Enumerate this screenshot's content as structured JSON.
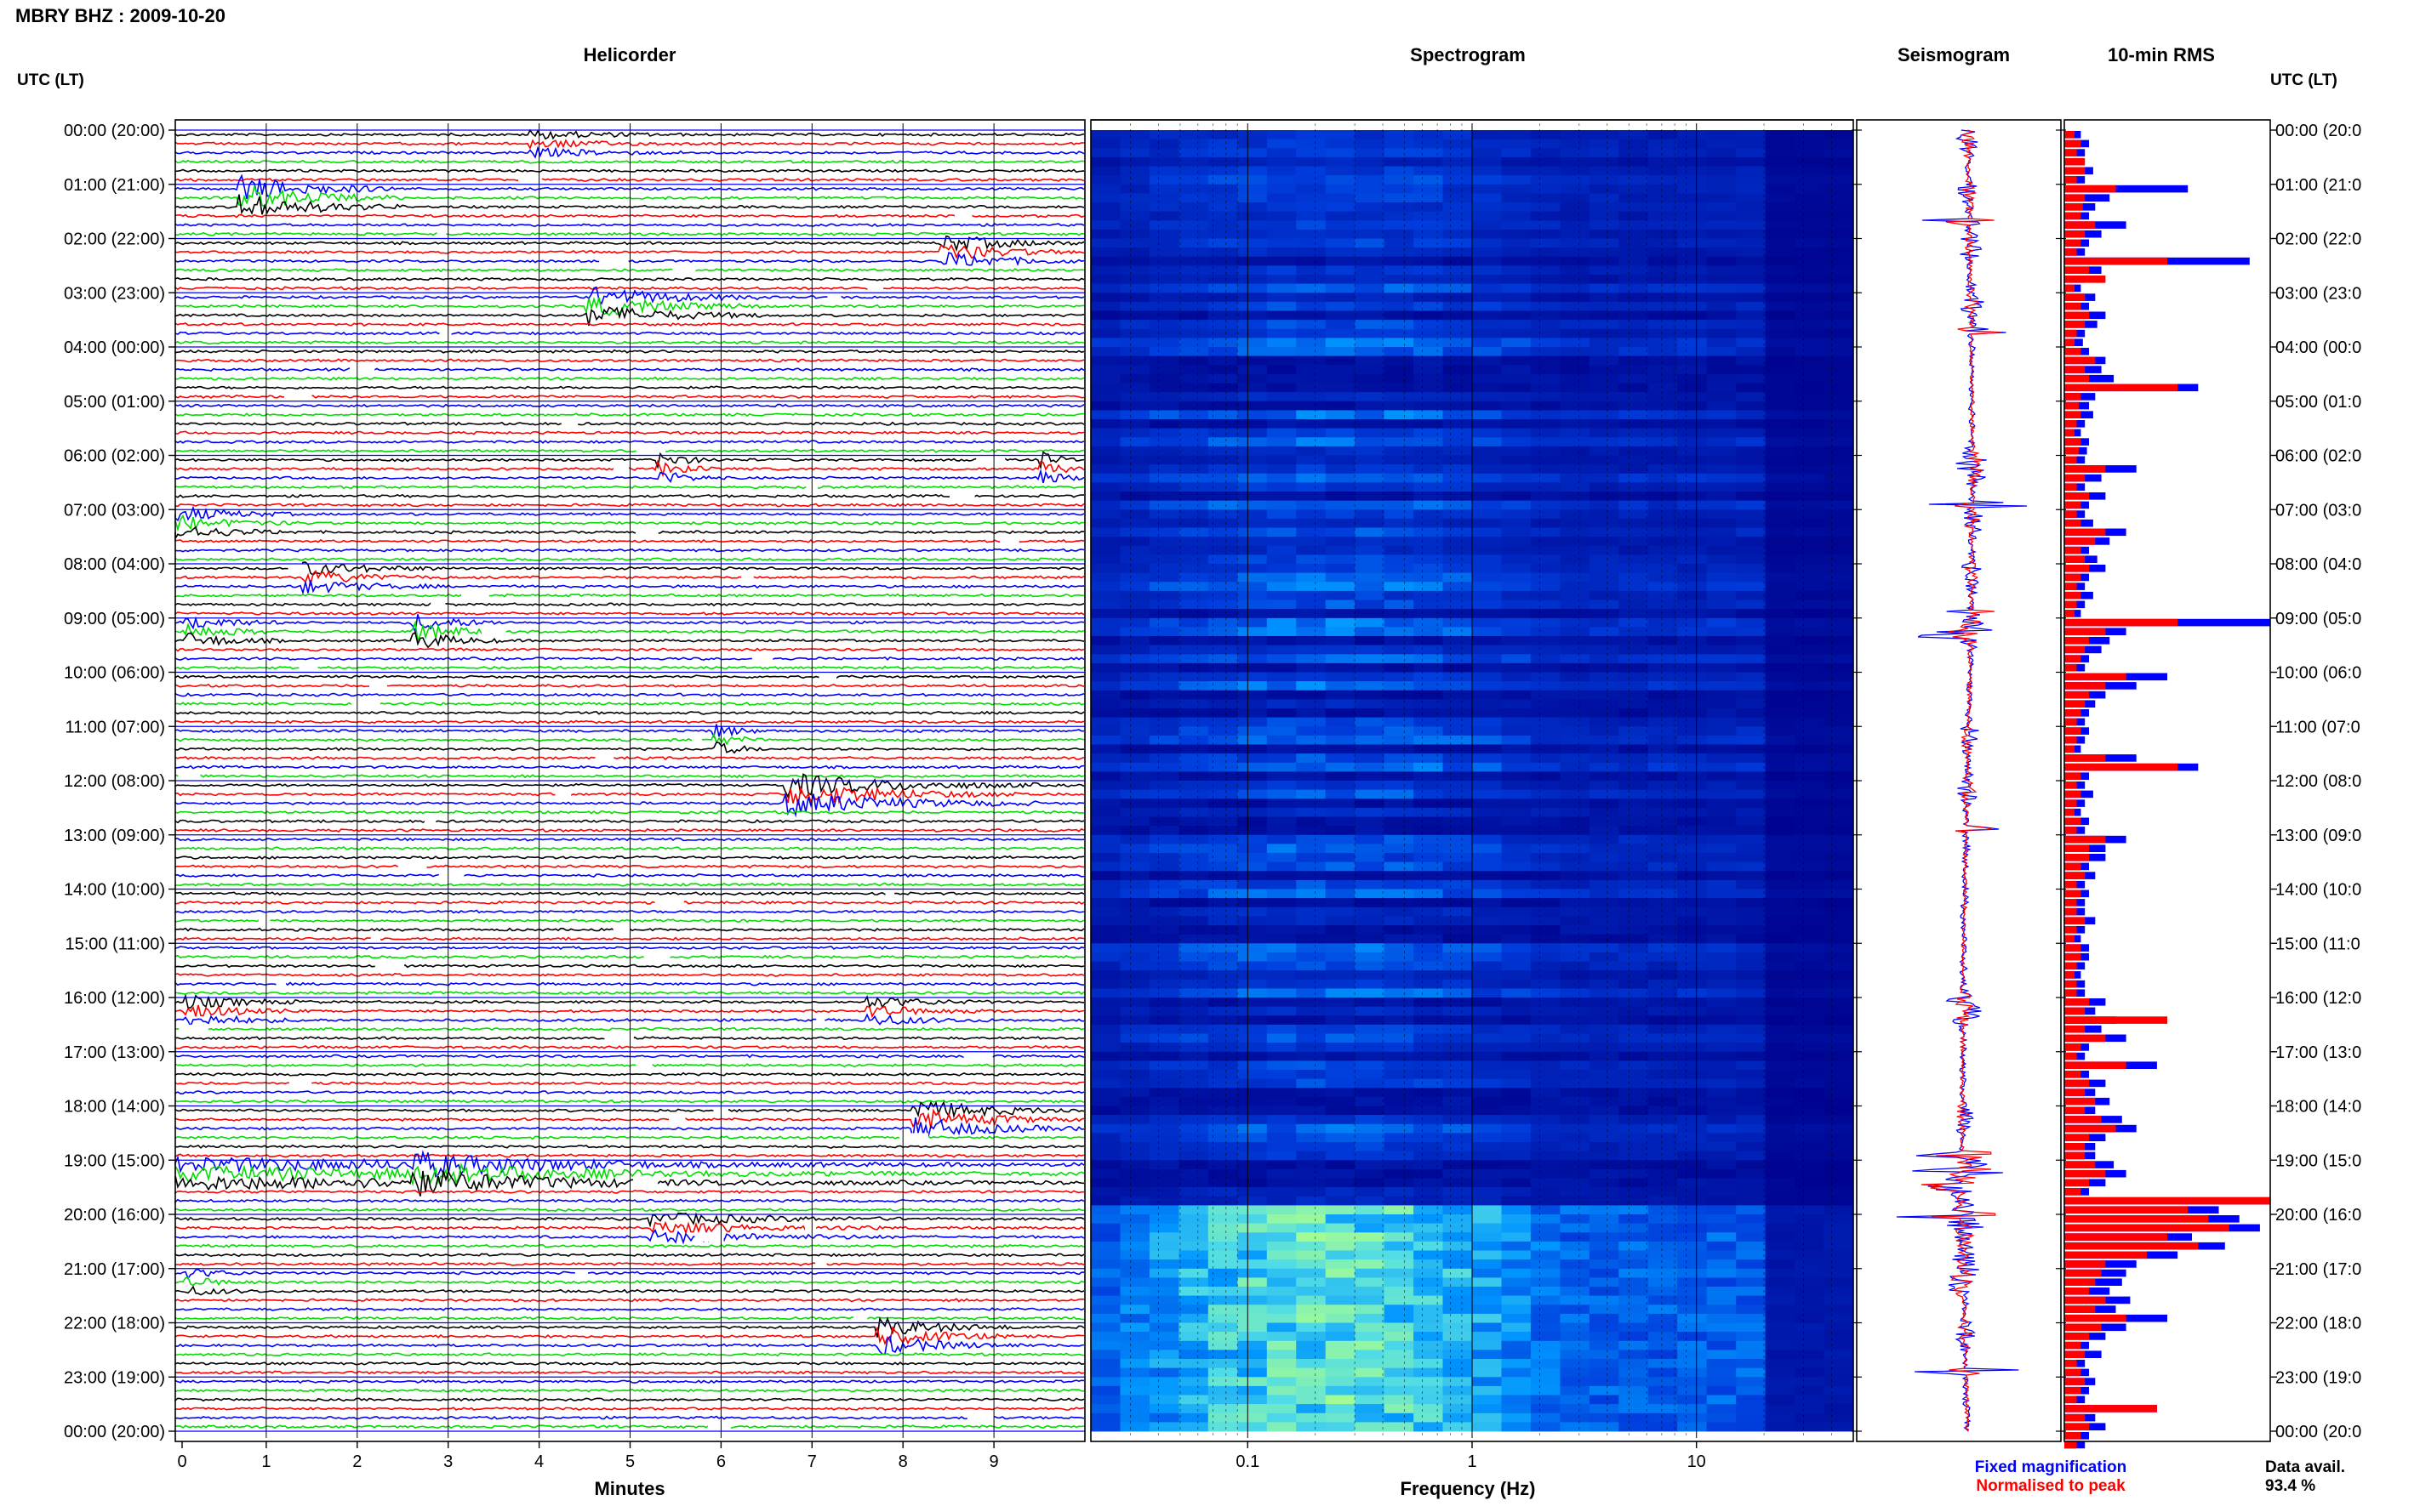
{
  "header": {
    "station_title": "MBRY BHZ : 2009-10-20"
  },
  "panels": {
    "helicorder_title": "Helicorder",
    "spectrogram_title": "Spectrogram",
    "seismogram_title": "Seismogram",
    "rms_title": "10-min RMS"
  },
  "axes": {
    "left_axis_title": "UTC (LT)",
    "right_axis_title": "UTC (LT)",
    "minutes_label": "Minutes",
    "frequency_label": "Frequency (Hz)",
    "minute_ticks": [
      "0",
      "1",
      "2",
      "3",
      "4",
      "5",
      "6",
      "7",
      "8",
      "9"
    ],
    "frequency_ticks": [
      "0.1",
      "1",
      "10"
    ],
    "time_labels_left": [
      "00:00 (20:00)",
      "01:00 (21:00)",
      "02:00 (22:00)",
      "03:00 (23:00)",
      "04:00 (00:00)",
      "05:00 (01:00)",
      "06:00 (02:00)",
      "07:00 (03:00)",
      "08:00 (04:00)",
      "09:00 (05:00)",
      "10:00 (06:00)",
      "11:00 (07:00)",
      "12:00 (08:00)",
      "13:00 (09:00)",
      "14:00 (10:00)",
      "15:00 (11:00)",
      "16:00 (12:00)",
      "17:00 (13:00)",
      "18:00 (14:00)",
      "19:00 (15:00)",
      "20:00 (16:00)",
      "21:00 (17:00)",
      "22:00 (18:00)",
      "23:00 (19:00)",
      "00:00 (20:00)"
    ],
    "time_labels_right": [
      "00:00 (20:0",
      "01:00 (21:0",
      "02:00 (22:0",
      "03:00 (23:0",
      "04:00 (00:0",
      "05:00 (01:0",
      "06:00 (02:0",
      "07:00 (03:0",
      "08:00 (04:0",
      "09:00 (05:0",
      "10:00 (06:0",
      "11:00 (07:0",
      "12:00 (08:0",
      "13:00 (09:0",
      "14:00 (10:0",
      "15:00 (11:0",
      "16:00 (12:0",
      "17:00 (13:0",
      "18:00 (14:0",
      "19:00 (15:0",
      "20:00 (16:0",
      "21:00 (17:0",
      "22:00 (18:0",
      "23:00 (19:0",
      "00:00 (20:0"
    ]
  },
  "legend": {
    "fixed_label": "Fixed magnification",
    "normalised_label": "Normalised to peak",
    "fixed_color": "#0000ff",
    "normalised_color": "#ff0000"
  },
  "data_availability": {
    "label": "Data avail.",
    "value": "93.4 %"
  },
  "colors": {
    "trace_cycle": [
      "#000000",
      "#ff0000",
      "#0000ff",
      "#00dd00"
    ],
    "grid_line": "#0000ff",
    "spectrogram_low": "#00008b",
    "spectrogram_high": "#7fff7f"
  },
  "chart_data": [
    {
      "type": "line",
      "name": "helicorder",
      "title": "Helicorder",
      "xlabel": "Minutes",
      "ylabel": "UTC (LT)",
      "xlim": [
        0,
        10
      ],
      "rows_per_hour": 6,
      "hours": 24,
      "events": [
        {
          "hour": 0,
          "start_min": 3.9,
          "end_min": 5.6,
          "amp": 0.9
        },
        {
          "hour": 1,
          "start_min": 0.7,
          "end_min": 2.5,
          "amp": 2.6
        },
        {
          "hour": 2,
          "start_min": 8.4,
          "end_min": 10.0,
          "amp": 1.8
        },
        {
          "hour": 3,
          "start_min": 4.5,
          "end_min": 6.5,
          "amp": 2.2
        },
        {
          "hour": 6,
          "start_min": 5.3,
          "end_min": 6.0,
          "amp": 1.6
        },
        {
          "hour": 6,
          "start_min": 9.5,
          "end_min": 10.0,
          "amp": 1.8
        },
        {
          "hour": 7,
          "start_min": 0.0,
          "end_min": 1.4,
          "amp": 1.5
        },
        {
          "hour": 8,
          "start_min": 1.4,
          "end_min": 3.0,
          "amp": 1.4
        },
        {
          "hour": 9,
          "start_min": 0.1,
          "end_min": 1.2,
          "amp": 1.6
        },
        {
          "hour": 9,
          "start_min": 2.6,
          "end_min": 3.6,
          "amp": 2.0
        },
        {
          "hour": 11,
          "start_min": 5.9,
          "end_min": 6.5,
          "amp": 1.6
        },
        {
          "hour": 12,
          "start_min": 6.7,
          "end_min": 9.5,
          "amp": 2.4
        },
        {
          "hour": 16,
          "start_min": 7.6,
          "end_min": 9.0,
          "amp": 1.2
        },
        {
          "hour": 16,
          "start_min": 0.1,
          "end_min": 1.5,
          "amp": 1.4
        },
        {
          "hour": 18,
          "start_min": 8.1,
          "end_min": 10.0,
          "amp": 2.2
        },
        {
          "hour": 19,
          "start_min": 2.6,
          "end_min": 5.2,
          "amp": 2.0
        },
        {
          "hour": 19,
          "start_min": 0.0,
          "end_min": 10.0,
          "amp": 1.4
        },
        {
          "hour": 20,
          "start_min": 5.2,
          "end_min": 8.0,
          "amp": 1.3
        },
        {
          "hour": 21,
          "start_min": 0.1,
          "end_min": 1.0,
          "amp": 1.0
        },
        {
          "hour": 22,
          "start_min": 7.7,
          "end_min": 9.3,
          "amp": 2.0
        }
      ]
    },
    {
      "type": "heatmap",
      "name": "spectrogram",
      "title": "Spectrogram",
      "xlabel": "Frequency (Hz)",
      "xscale": "log",
      "xlim": [
        0.02,
        50
      ],
      "xticks": [
        0.1,
        1,
        10
      ],
      "active_hours": [
        [
          0,
          19.75
        ],
        [
          19.75,
          24
        ]
      ],
      "active_intensity": [
        0.45,
        0.9
      ]
    },
    {
      "type": "line",
      "name": "seismogram",
      "title": "Seismogram",
      "series": [
        {
          "name": "Fixed magnification",
          "color": "#0000ff"
        },
        {
          "name": "Normalised to peak",
          "color": "#ff0000"
        }
      ]
    },
    {
      "type": "bar",
      "name": "rms",
      "title": "10-min RMS",
      "orientation": "horizontal",
      "bins_per_hour": 6,
      "fixed_values": [
        0.08,
        0.12,
        0.1,
        0.09,
        0.14,
        0.1,
        0.6,
        0.22,
        0.15,
        0.12,
        0.3,
        0.18,
        0.12,
        0.1,
        0.9,
        0.18,
        0.1,
        0.08,
        0.15,
        0.12,
        0.2,
        0.16,
        0.1,
        0.09,
        0.12,
        0.2,
        0.18,
        0.24,
        0.65,
        0.15,
        0.12,
        0.14,
        0.1,
        0.08,
        0.12,
        0.11,
        0.1,
        0.35,
        0.18,
        0.1,
        0.2,
        0.12,
        0.1,
        0.14,
        0.3,
        0.22,
        0.12,
        0.16,
        0.2,
        0.12,
        0.1,
        0.14,
        0.1,
        0.08,
        1.0,
        0.3,
        0.22,
        0.18,
        0.12,
        0.1,
        0.5,
        0.35,
        0.2,
        0.15,
        0.12,
        0.1,
        0.12,
        0.1,
        0.08,
        0.35,
        0.65,
        0.12,
        0.1,
        0.14,
        0.1,
        0.08,
        0.12,
        0.1,
        0.3,
        0.2,
        0.2,
        0.12,
        0.15,
        0.1,
        0.12,
        0.1,
        0.1,
        0.15,
        0.1,
        0.08,
        0.12,
        0.12,
        0.1,
        0.08,
        0.1,
        0.1,
        0.2,
        0.15,
        0.25,
        0.18,
        0.3,
        0.12,
        0.1,
        0.45,
        0.12,
        0.2,
        0.15,
        0.22,
        0.15,
        0.28,
        0.35,
        0.2,
        0.15,
        0.15,
        0.24,
        0.3,
        0.2,
        0.12,
        1.0,
        0.75,
        0.85,
        0.95,
        0.62,
        0.78,
        0.55,
        0.35,
        0.3,
        0.28,
        0.22,
        0.32,
        0.25,
        0.5,
        0.3,
        0.2,
        0.12,
        0.18,
        0.1,
        0.12,
        0.15,
        0.12,
        0.1,
        0.45,
        0.15,
        0.2,
        0.12,
        0.1
      ],
      "normalised_values": [
        0.05,
        0.08,
        0.06,
        0.1,
        0.1,
        0.06,
        0.25,
        0.1,
        0.09,
        0.08,
        0.15,
        0.1,
        0.08,
        0.06,
        0.5,
        0.12,
        0.2,
        0.05,
        0.1,
        0.08,
        0.12,
        0.1,
        0.06,
        0.05,
        0.08,
        0.15,
        0.1,
        0.12,
        0.55,
        0.08,
        0.07,
        0.08,
        0.06,
        0.05,
        0.08,
        0.07,
        0.06,
        0.2,
        0.1,
        0.06,
        0.12,
        0.08,
        0.06,
        0.08,
        0.2,
        0.15,
        0.08,
        0.1,
        0.12,
        0.08,
        0.06,
        0.08,
        0.06,
        0.05,
        0.55,
        0.2,
        0.12,
        0.1,
        0.08,
        0.06,
        0.3,
        0.2,
        0.12,
        0.1,
        0.08,
        0.06,
        0.08,
        0.06,
        0.05,
        0.2,
        0.55,
        0.08,
        0.06,
        0.08,
        0.06,
        0.05,
        0.08,
        0.06,
        0.2,
        0.12,
        0.12,
        0.08,
        0.1,
        0.06,
        0.08,
        0.06,
        0.06,
        0.1,
        0.06,
        0.05,
        0.08,
        0.08,
        0.06,
        0.05,
        0.06,
        0.06,
        0.12,
        0.1,
        0.5,
        0.1,
        0.2,
        0.08,
        0.06,
        0.3,
        0.08,
        0.12,
        0.1,
        0.15,
        0.1,
        0.18,
        0.25,
        0.12,
        0.1,
        0.1,
        0.15,
        0.2,
        0.12,
        0.08,
        1.0,
        0.6,
        0.7,
        0.8,
        0.5,
        0.65,
        0.4,
        0.2,
        0.18,
        0.15,
        0.12,
        0.2,
        0.15,
        0.3,
        0.18,
        0.12,
        0.08,
        0.1,
        0.06,
        0.08,
        0.1,
        0.08,
        0.06,
        0.45,
        0.1,
        0.12,
        0.08,
        0.06
      ]
    }
  ]
}
